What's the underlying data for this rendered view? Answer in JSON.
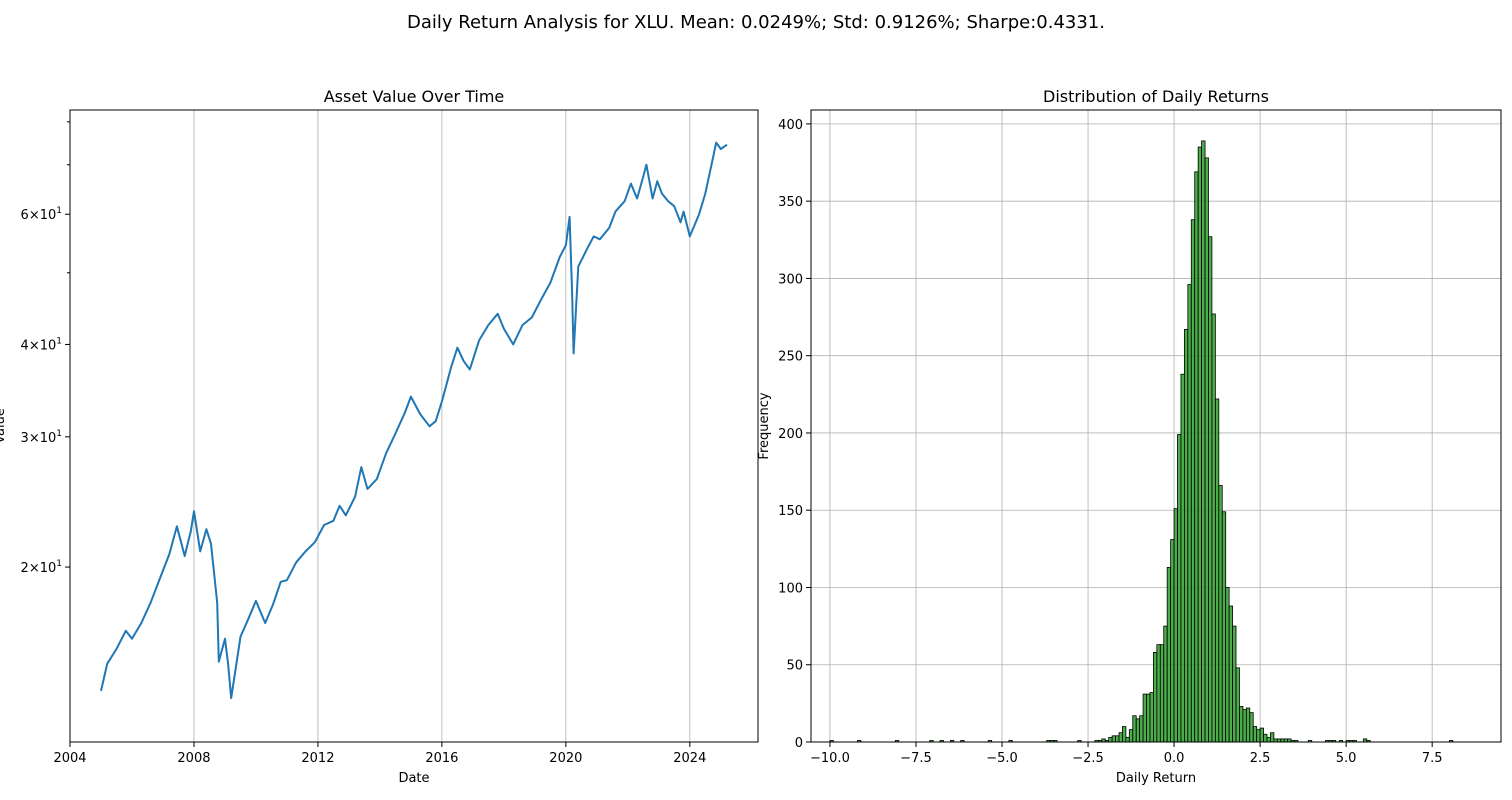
{
  "figure": {
    "suptitle": "Daily Return Analysis for XLU. Mean: 0.0249%; Std: 0.9126%; Sharpe:0.4331."
  },
  "chart_data": [
    {
      "type": "line",
      "title": "Asset Value Over Time",
      "xlabel": "Date",
      "ylabel": "Value",
      "yscale": "log",
      "grid": "x",
      "color": "#1f77b4",
      "xlim": [
        2004.0,
        2026.2
      ],
      "ylim": [
        11.6,
        83.0
      ],
      "xticks": [
        2004,
        2008,
        2012,
        2016,
        2020,
        2024
      ],
      "xtick_labels": [
        "2004",
        "2008",
        "2012",
        "2016",
        "2020",
        "2024"
      ],
      "yticks": [
        20,
        30,
        40,
        60
      ],
      "ytick_labels": [
        "2×10^1",
        "3×10^1",
        "4×10^1",
        "6×10^1"
      ],
      "series": [
        {
          "x": [
            2005.0,
            2005.2,
            2005.5,
            2005.8,
            2006.0,
            2006.3,
            2006.6,
            2006.9,
            2007.2,
            2007.45,
            2007.7,
            2007.9,
            2008.0,
            2008.2,
            2008.4,
            2008.55,
            2008.75,
            2008.8,
            2009.0,
            2009.1,
            2009.2,
            2009.5,
            2009.75,
            2010.0,
            2010.3,
            2010.55,
            2010.8,
            2011.0,
            2011.3,
            2011.6,
            2011.9,
            2012.2,
            2012.5,
            2012.7,
            2012.9,
            2013.2,
            2013.4,
            2013.6,
            2013.9,
            2014.2,
            2014.5,
            2014.8,
            2015.0,
            2015.3,
            2015.6,
            2015.8,
            2016.0,
            2016.3,
            2016.5,
            2016.7,
            2016.9,
            2017.2,
            2017.5,
            2017.8,
            2018.0,
            2018.3,
            2018.6,
            2018.9,
            2019.2,
            2019.5,
            2019.8,
            2020.0,
            2020.12,
            2020.2,
            2020.25,
            2020.4,
            2020.7,
            2020.9,
            2021.1,
            2021.4,
            2021.6,
            2021.9,
            2022.1,
            2022.3,
            2022.5,
            2022.6,
            2022.8,
            2022.95,
            2023.1,
            2023.3,
            2023.5,
            2023.7,
            2023.8,
            2024.0,
            2024.3,
            2024.5,
            2024.7,
            2024.85,
            2025.0,
            2025.2
          ],
          "y": [
            13.6,
            14.8,
            15.5,
            16.4,
            16.0,
            16.8,
            17.9,
            19.3,
            20.8,
            22.7,
            20.7,
            22.4,
            23.8,
            21.0,
            22.5,
            21.5,
            17.9,
            14.9,
            16.0,
            14.8,
            13.3,
            16.1,
            17.0,
            18.0,
            16.8,
            17.8,
            19.1,
            19.2,
            20.3,
            21.0,
            21.6,
            22.8,
            23.1,
            24.2,
            23.5,
            24.9,
            27.3,
            25.5,
            26.3,
            28.5,
            30.3,
            32.3,
            34.0,
            32.2,
            31.0,
            31.5,
            33.5,
            37.3,
            39.6,
            38.0,
            37.0,
            40.5,
            42.5,
            44.0,
            42.0,
            40.0,
            42.5,
            43.5,
            46.0,
            48.5,
            52.5,
            54.5,
            59.5,
            47.0,
            38.9,
            51.0,
            54.0,
            56.0,
            55.5,
            57.5,
            60.5,
            62.5,
            66.0,
            63.0,
            67.5,
            70.0,
            63.0,
            66.5,
            64.0,
            62.5,
            61.5,
            58.5,
            60.5,
            56.0,
            60.0,
            64.0,
            70.0,
            75.0,
            73.5,
            74.5
          ]
        }
      ]
    },
    {
      "type": "bar",
      "title": "Distribution of Daily Returns",
      "xlabel": "Daily Return",
      "ylabel": "Frequency",
      "grid": "both",
      "color": "#2ca02c",
      "edgecolor": "#000000",
      "xlim": [
        -10.55,
        9.5
      ],
      "ylim": [
        0,
        409
      ],
      "xticks": [
        -10.0,
        -7.5,
        -5.0,
        -2.5,
        0.0,
        2.5,
        5.0,
        7.5
      ],
      "xtick_labels": [
        "−10.0",
        "−7.5",
        "−5.0",
        "−2.5",
        "0.0",
        "2.5",
        "5.0",
        "7.5"
      ],
      "yticks": [
        0,
        50,
        100,
        150,
        200,
        250,
        300,
        350,
        400
      ],
      "ytick_labels": [
        "0",
        "50",
        "100",
        "150",
        "200",
        "250",
        "300",
        "350",
        "400"
      ],
      "bin_start": -10.0,
      "bin_width": 0.1,
      "counts": [
        1,
        0,
        0,
        0,
        0,
        0,
        0,
        0,
        1,
        0,
        0,
        0,
        0,
        0,
        0,
        0,
        0,
        0,
        0,
        1,
        0,
        0,
        0,
        0,
        0,
        0,
        0,
        0,
        0,
        1,
        0,
        0,
        1,
        0,
        0,
        1,
        0,
        0,
        1,
        0,
        0,
        0,
        0,
        0,
        0,
        0,
        1,
        0,
        0,
        0,
        0,
        0,
        1,
        0,
        0,
        0,
        0,
        0,
        0,
        0,
        0,
        0,
        0,
        1,
        1,
        1,
        0,
        0,
        0,
        0,
        0,
        0,
        1,
        0,
        0,
        0,
        0,
        1,
        1,
        2,
        1,
        3,
        4,
        4,
        6,
        10,
        3,
        8,
        17,
        15,
        17,
        31,
        31,
        32,
        58,
        63,
        63,
        75,
        113,
        131,
        151,
        199,
        238,
        267,
        296,
        338,
        369,
        385,
        389,
        378,
        327,
        277,
        222,
        166,
        149,
        100,
        88,
        75,
        48,
        23,
        21,
        22,
        19,
        10,
        8,
        9,
        5,
        3,
        6,
        2,
        2,
        2,
        2,
        2,
        1,
        1,
        0,
        0,
        0,
        1,
        0,
        0,
        0,
        0,
        1,
        1,
        1,
        0,
        1,
        0,
        1,
        1,
        1,
        0,
        0,
        2,
        1,
        0,
        0,
        0,
        0,
        0,
        0,
        0,
        0,
        0,
        0,
        0,
        0,
        0,
        0,
        0,
        0,
        0,
        0,
        0,
        0,
        0,
        0,
        0,
        1
      ]
    }
  ]
}
